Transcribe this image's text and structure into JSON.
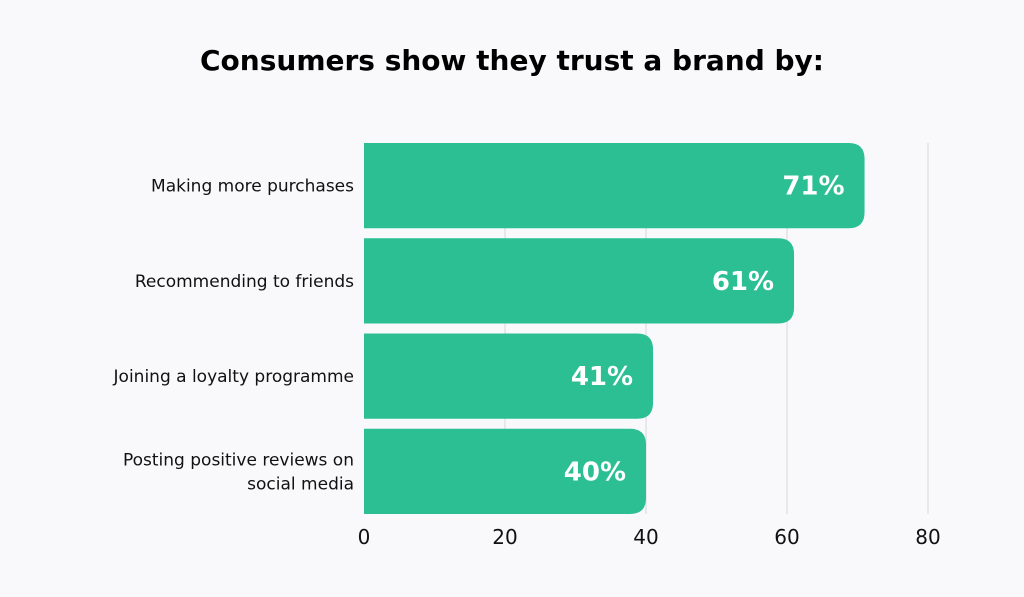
{
  "chart_data": {
    "type": "bar",
    "orientation": "horizontal",
    "title": "Consumers show they trust a brand by:",
    "categories": [
      "Making more purchases",
      "Recommending to friends",
      "Joining a loyalty programme",
      "Posting positive reviews on social media"
    ],
    "category_lines": [
      [
        "Making more purchases"
      ],
      [
        "Recommending to friends"
      ],
      [
        "Joining a loyalty programme"
      ],
      [
        "Posting positive reviews on",
        "social media"
      ]
    ],
    "values": [
      71,
      61,
      41,
      40
    ],
    "data_labels": [
      "71%",
      "61%",
      "41%",
      "40%"
    ],
    "xlabel": "",
    "ylabel": "",
    "xlim": [
      0,
      80
    ],
    "xticks": [
      "0",
      "20",
      "40",
      "60",
      "80"
    ],
    "grid": "vertical",
    "legend": "none",
    "colors": {
      "bar": "#2bbf93",
      "grid": "#dcdcdf",
      "background": "#f9f9fc",
      "label": "#ffffff"
    }
  }
}
